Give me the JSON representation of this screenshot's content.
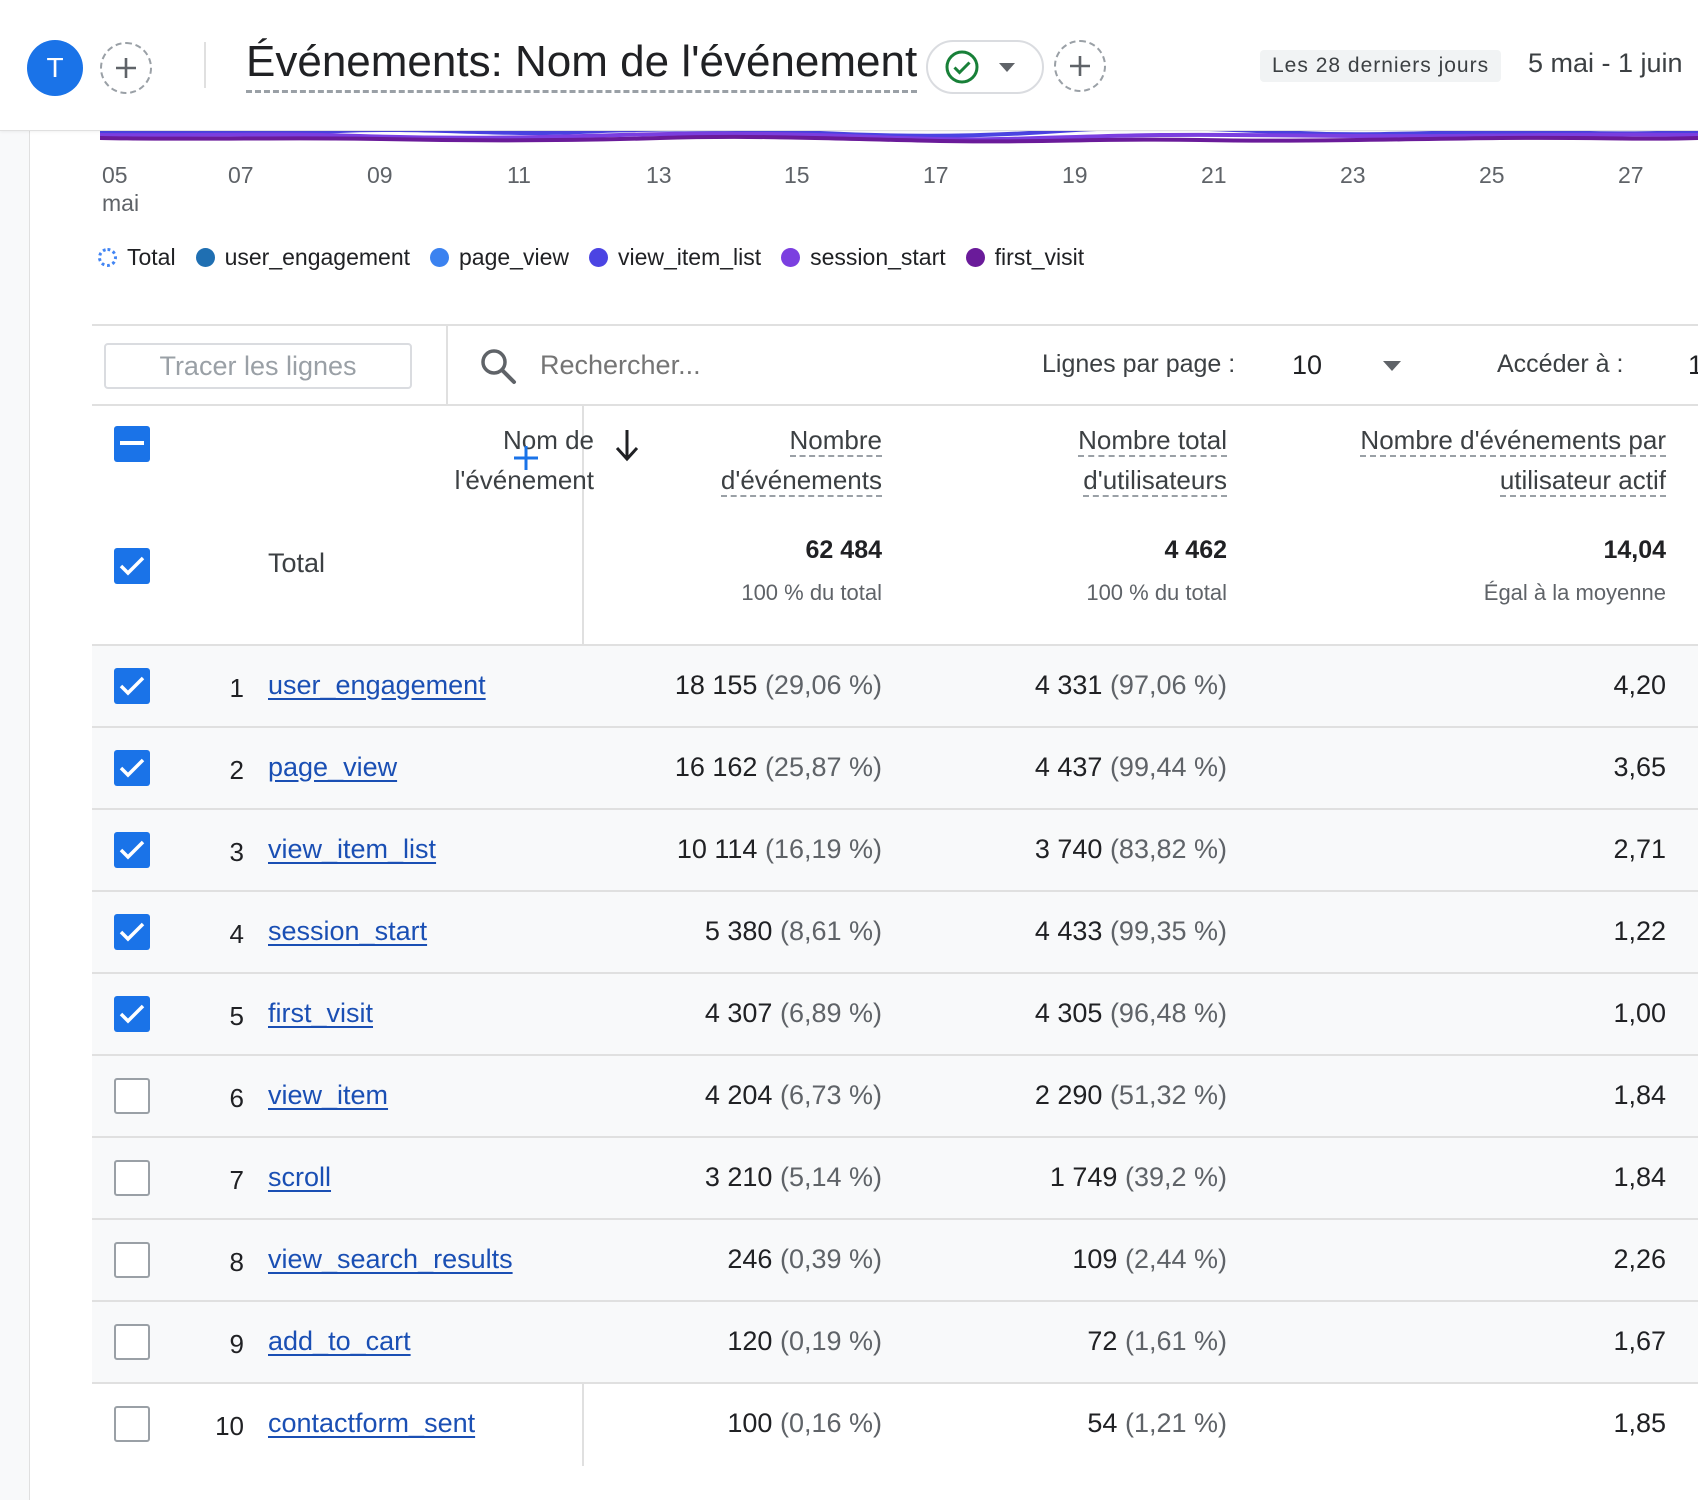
{
  "header": {
    "avatar_letter": "T",
    "report_title": "Événements: Nom de l'événement",
    "date_preset": "Les 28 derniers jours",
    "date_range": "5 mai - 1 juin"
  },
  "chart": {
    "x_ticks": [
      "05",
      "07",
      "09",
      "11",
      "13",
      "15",
      "17",
      "19",
      "21",
      "23",
      "25",
      "27"
    ],
    "x_month": "mai",
    "legend": [
      {
        "label": "Total",
        "color": "#4285f4",
        "style": "dotted"
      },
      {
        "label": "user_engagement",
        "color": "#1f6fb2"
      },
      {
        "label": "page_view",
        "color": "#3b82f0"
      },
      {
        "label": "view_item_list",
        "color": "#4b44e3"
      },
      {
        "label": "session_start",
        "color": "#7b3fe0"
      },
      {
        "label": "first_visit",
        "color": "#6a1b9a"
      }
    ]
  },
  "toolbar": {
    "plot_rows_label": "Tracer les lignes",
    "search_placeholder": "Rechercher...",
    "rows_per_page_label": "Lignes par page :",
    "rows_per_page_value": "10",
    "goto_label": "Accéder à :",
    "goto_value": "1"
  },
  "table": {
    "columns": {
      "event_name_line1": "Nom de",
      "event_name_line2": "l'événement",
      "event_count_line1": "Nombre",
      "event_count_line2": "d'événements",
      "total_users_line1": "Nombre total",
      "total_users_line2": "d'utilisateurs",
      "per_user_line1": "Nombre d'événements par",
      "per_user_line2": "utilisateur actif"
    },
    "total": {
      "label": "Total",
      "event_count": "62 484",
      "event_count_sub": "100 % du total",
      "total_users": "4 462",
      "total_users_sub": "100 % du total",
      "per_user": "14,04",
      "per_user_sub": "Égal à la moyenne"
    },
    "rows": [
      {
        "index": "1",
        "name": "user_engagement",
        "count": "18 155",
        "count_pct": "(29,06 %)",
        "users": "4 331",
        "users_pct": "(97,06 %)",
        "per_user": "4,20",
        "checked": true
      },
      {
        "index": "2",
        "name": "page_view",
        "count": "16 162",
        "count_pct": "(25,87 %)",
        "users": "4 437",
        "users_pct": "(99,44 %)",
        "per_user": "3,65",
        "checked": true
      },
      {
        "index": "3",
        "name": "view_item_list",
        "count": "10 114",
        "count_pct": "(16,19 %)",
        "users": "3 740",
        "users_pct": "(83,82 %)",
        "per_user": "2,71",
        "checked": true
      },
      {
        "index": "4",
        "name": "session_start",
        "count": "5 380",
        "count_pct": "(8,61 %)",
        "users": "4 433",
        "users_pct": "(99,35 %)",
        "per_user": "1,22",
        "checked": true
      },
      {
        "index": "5",
        "name": "first_visit",
        "count": "4 307",
        "count_pct": "(6,89 %)",
        "users": "4 305",
        "users_pct": "(96,48 %)",
        "per_user": "1,00",
        "checked": true
      },
      {
        "index": "6",
        "name": "view_item",
        "count": "4 204",
        "count_pct": "(6,73 %)",
        "users": "2 290",
        "users_pct": "(51,32 %)",
        "per_user": "1,84",
        "checked": false
      },
      {
        "index": "7",
        "name": "scroll",
        "count": "3 210",
        "count_pct": "(5,14 %)",
        "users": "1 749",
        "users_pct": "(39,2 %)",
        "per_user": "1,84",
        "checked": false
      },
      {
        "index": "8",
        "name": "view_search_results",
        "count": "246",
        "count_pct": "(0,39 %)",
        "users": "109",
        "users_pct": "(2,44 %)",
        "per_user": "2,26",
        "checked": false
      },
      {
        "index": "9",
        "name": "add_to_cart",
        "count": "120",
        "count_pct": "(0,19 %)",
        "users": "72",
        "users_pct": "(1,61 %)",
        "per_user": "1,67",
        "checked": false
      },
      {
        "index": "10",
        "name": "contactform_sent",
        "count": "100",
        "count_pct": "(0,16 %)",
        "users": "54",
        "users_pct": "(1,21 %)",
        "per_user": "1,85",
        "checked": false
      }
    ]
  },
  "colors": {
    "accent": "#1a73e8",
    "link": "#1a4fb4",
    "success": "#188038"
  }
}
